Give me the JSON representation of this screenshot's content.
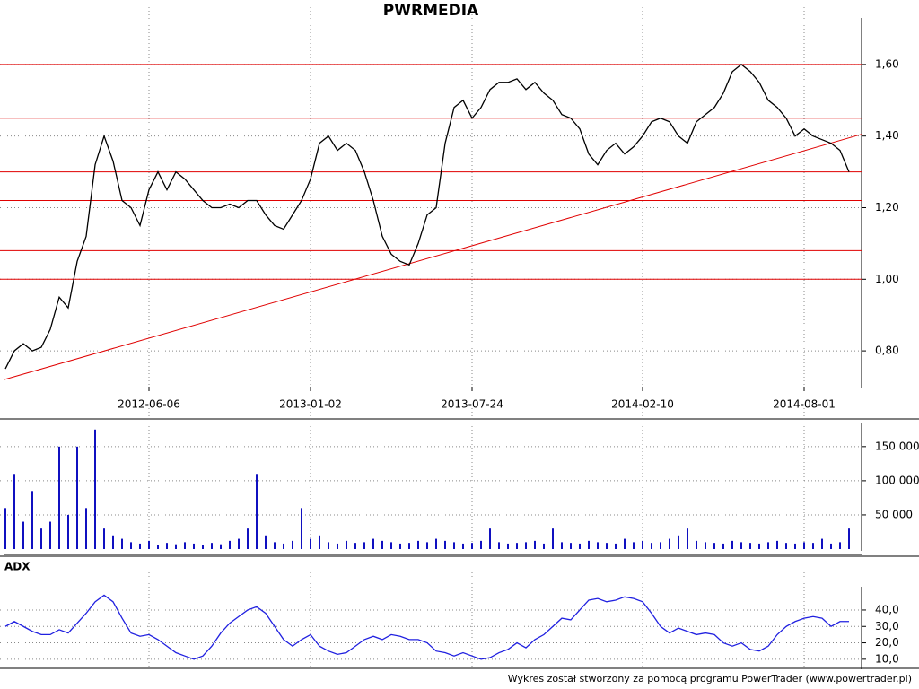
{
  "chart_data": [
    {
      "type": "line",
      "title": "PWRMEDIA",
      "categories": [
        null,
        null,
        null,
        null,
        null,
        null,
        null,
        null,
        null,
        null,
        null,
        null,
        null,
        null,
        null,
        null,
        "2012-06-06",
        null,
        null,
        null,
        null,
        null,
        null,
        null,
        null,
        null,
        null,
        null,
        null,
        null,
        null,
        null,
        null,
        null,
        "2013-01-02",
        null,
        null,
        null,
        null,
        null,
        null,
        null,
        null,
        null,
        null,
        null,
        null,
        null,
        null,
        null,
        null,
        null,
        "2013-07-24",
        null,
        null,
        null,
        null,
        null,
        null,
        null,
        null,
        null,
        null,
        null,
        null,
        null,
        null,
        null,
        null,
        null,
        null,
        "2014-02-10",
        null,
        null,
        null,
        null,
        null,
        null,
        null,
        null,
        null,
        null,
        null,
        null,
        null,
        null,
        null,
        null,
        null,
        "2014-08-01",
        null,
        null,
        null,
        null,
        null
      ],
      "values": [
        0.75,
        0.8,
        0.82,
        0.8,
        0.81,
        0.86,
        0.95,
        0.92,
        1.05,
        1.12,
        1.32,
        1.4,
        1.33,
        1.22,
        1.2,
        1.15,
        1.25,
        1.3,
        1.25,
        1.3,
        1.28,
        1.25,
        1.22,
        1.2,
        1.2,
        1.21,
        1.2,
        1.22,
        1.22,
        1.18,
        1.15,
        1.14,
        1.18,
        1.22,
        1.28,
        1.38,
        1.4,
        1.36,
        1.38,
        1.36,
        1.3,
        1.22,
        1.12,
        1.07,
        1.05,
        1.04,
        1.1,
        1.18,
        1.2,
        1.38,
        1.48,
        1.5,
        1.45,
        1.48,
        1.53,
        1.55,
        1.55,
        1.56,
        1.53,
        1.55,
        1.52,
        1.5,
        1.46,
        1.45,
        1.42,
        1.35,
        1.32,
        1.36,
        1.38,
        1.35,
        1.37,
        1.4,
        1.44,
        1.45,
        1.44,
        1.4,
        1.38,
        1.44,
        1.46,
        1.48,
        1.52,
        1.58,
        1.6,
        1.58,
        1.55,
        1.5,
        1.48,
        1.45,
        1.4,
        1.42,
        1.4,
        1.39,
        1.38,
        1.36,
        1.3
      ],
      "color": "#000000",
      "ylim": [
        0.7,
        1.72
      ],
      "yticks": [
        {
          "value": 0.8,
          "label": "0,80"
        },
        {
          "value": 1.0,
          "label": "1,00"
        },
        {
          "value": 1.2,
          "label": "1,20"
        },
        {
          "value": 1.4,
          "label": "1,40"
        },
        {
          "value": 1.6,
          "label": "1,60"
        }
      ],
      "grid": true,
      "hlines": [
        1.6,
        1.45,
        1.3,
        1.22,
        1.08,
        1.0
      ],
      "trend": [
        0.72,
        1.405
      ],
      "line_color": "#e00000"
    },
    {
      "type": "bar",
      "values": [
        60000,
        110000,
        40000,
        85000,
        30000,
        40000,
        150000,
        50000,
        150000,
        60000,
        175000,
        30000,
        20000,
        15000,
        10000,
        8000,
        12000,
        6000,
        9000,
        7000,
        10000,
        8000,
        6000,
        9000,
        7000,
        12000,
        15000,
        30000,
        110000,
        20000,
        10000,
        8000,
        12000,
        60000,
        15000,
        20000,
        10000,
        8000,
        12000,
        9000,
        10000,
        15000,
        12000,
        10000,
        8000,
        9000,
        12000,
        10000,
        15000,
        12000,
        10000,
        8000,
        9000,
        12000,
        30000,
        10000,
        8000,
        9000,
        10000,
        12000,
        8000,
        30000,
        10000,
        9000,
        8000,
        12000,
        10000,
        9000,
        8000,
        15000,
        10000,
        12000,
        9000,
        10000,
        15000,
        20000,
        30000,
        12000,
        10000,
        9000,
        8000,
        12000,
        10000,
        9000,
        8000,
        10000,
        12000,
        9000,
        8000,
        10000,
        9000,
        15000,
        8000,
        10000,
        30000
      ],
      "color": "#1010c0",
      "ylim": [
        0,
        180000
      ],
      "yticks": [
        {
          "value": 50000,
          "label": "50 000"
        },
        {
          "value": 100000,
          "label": "100 000"
        },
        {
          "value": 150000,
          "label": "150 000"
        }
      ],
      "grid": true
    },
    {
      "type": "line",
      "title": "ADX",
      "values": [
        30,
        33,
        30,
        27,
        25,
        25,
        28,
        26,
        32,
        38,
        45,
        49,
        45,
        35,
        26,
        24,
        25,
        22,
        18,
        14,
        12,
        10,
        12,
        18,
        26,
        32,
        36,
        40,
        42,
        38,
        30,
        22,
        18,
        22,
        25,
        18,
        15,
        13,
        14,
        18,
        22,
        24,
        22,
        25,
        24,
        22,
        22,
        20,
        15,
        14,
        12,
        14,
        12,
        10,
        11,
        14,
        16,
        20,
        17,
        22,
        25,
        30,
        35,
        34,
        40,
        46,
        47,
        45,
        46,
        48,
        47,
        45,
        38,
        30,
        26,
        29,
        27,
        25,
        26,
        25,
        20,
        18,
        20,
        16,
        15,
        18,
        25,
        30,
        33,
        35,
        36,
        35,
        30,
        33,
        33
      ],
      "color": "#2020e0",
      "ylim": [
        5,
        52
      ],
      "yticks": [
        {
          "value": 10,
          "label": "10,0"
        },
        {
          "value": 20,
          "label": "20,0"
        },
        {
          "value": 30,
          "label": "30,0"
        },
        {
          "value": 40,
          "label": "40,0"
        }
      ],
      "grid": true
    }
  ],
  "footer": "Wykres został stworzony za pomocą programu PowerTrader (www.powertrader.pl)"
}
